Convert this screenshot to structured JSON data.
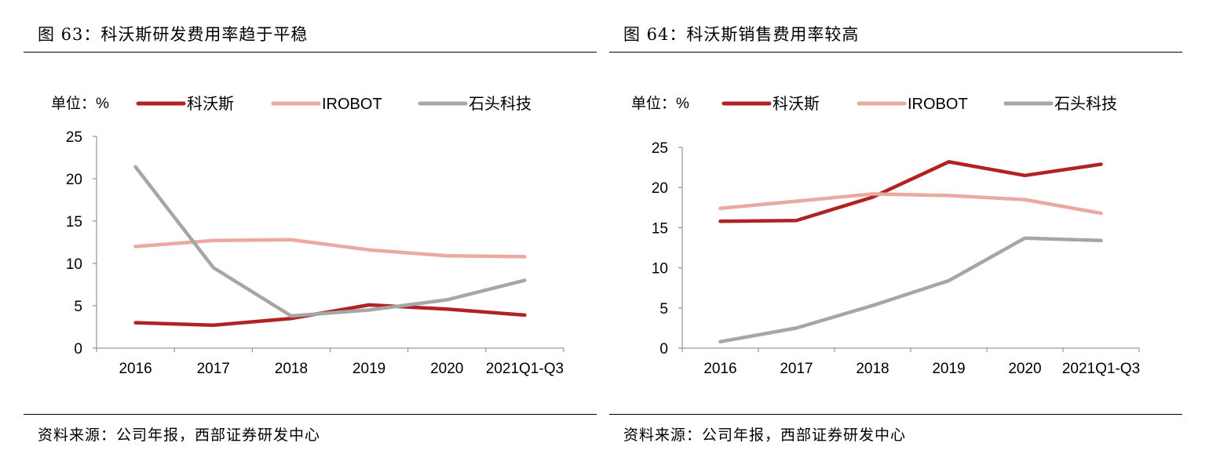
{
  "panels": [
    {
      "title": "图 63：科沃斯研发费用率趋于平稳",
      "source": "资料来源：公司年报，西部证券研发中心"
    },
    {
      "title": "图 64：科沃斯销售费用率较高",
      "source": "资料来源：公司年报，西部证券研发中心"
    }
  ],
  "chart_data": [
    {
      "type": "line",
      "unit_label": "单位：%",
      "categories": [
        "2016",
        "2017",
        "2018",
        "2019",
        "2020",
        "2021Q1-Q3"
      ],
      "ylim": [
        0,
        25
      ],
      "yticks": [
        0,
        5,
        10,
        15,
        20,
        25
      ],
      "grid": false,
      "legend_position": "top",
      "series": [
        {
          "name": "科沃斯",
          "color": "#b22222",
          "values": [
            3.0,
            2.7,
            3.5,
            5.1,
            4.6,
            3.9
          ]
        },
        {
          "name": "IROBOT",
          "color": "#eaa9a1",
          "values": [
            12.0,
            12.7,
            12.8,
            11.6,
            10.9,
            10.8
          ]
        },
        {
          "name": "石头科技",
          "color": "#a6a6a6",
          "values": [
            21.4,
            9.5,
            3.8,
            4.5,
            5.7,
            8.0
          ]
        }
      ]
    },
    {
      "type": "line",
      "unit_label": "单位：%",
      "categories": [
        "2016",
        "2017",
        "2018",
        "2019",
        "2020",
        "2021Q1-Q3"
      ],
      "ylim": [
        0,
        25
      ],
      "yticks": [
        0,
        5,
        10,
        15,
        20,
        25
      ],
      "grid": false,
      "legend_position": "top",
      "series": [
        {
          "name": "科沃斯",
          "color": "#b22222",
          "values": [
            15.8,
            15.9,
            18.8,
            23.2,
            21.5,
            22.9
          ]
        },
        {
          "name": "IROBOT",
          "color": "#eaa9a1",
          "values": [
            17.4,
            18.3,
            19.2,
            19.0,
            18.5,
            16.8
          ]
        },
        {
          "name": "石头科技",
          "color": "#a6a6a6",
          "values": [
            0.8,
            2.5,
            5.3,
            8.4,
            13.7,
            13.4
          ]
        }
      ]
    }
  ]
}
